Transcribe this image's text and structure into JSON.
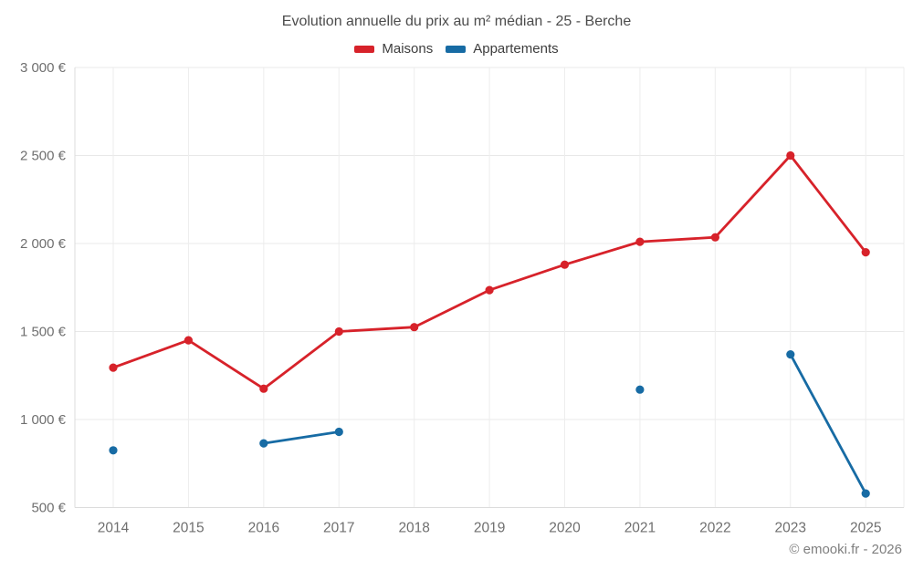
{
  "chart": {
    "title": "Evolution annuelle du prix au m² médian - 25 - Berche",
    "legend": [
      {
        "label": "Maisons",
        "color": "#d7222a"
      },
      {
        "label": "Appartements",
        "color": "#176ba4"
      }
    ]
  },
  "footer": {
    "copyright": "© emooki.fr - 2026"
  },
  "chart_data": {
    "type": "line",
    "title": "Evolution annuelle du prix au m² médian - 25 - Berche",
    "categories": [
      "2014",
      "2015",
      "2016",
      "2017",
      "2018",
      "2019",
      "2020",
      "2021",
      "2022",
      "2023",
      "2025"
    ],
    "series": [
      {
        "name": "Maisons",
        "color": "#d7222a",
        "values": [
          1295,
          1450,
          1175,
          1500,
          1525,
          1735,
          1880,
          2010,
          2035,
          2500,
          1950
        ]
      },
      {
        "name": "Appartements",
        "color": "#176ba4",
        "values": [
          825,
          null,
          865,
          930,
          null,
          null,
          null,
          1170,
          null,
          1370,
          580
        ]
      }
    ],
    "ylim": [
      500,
      3000
    ],
    "yticks": [
      {
        "value": 500,
        "label": "500 €"
      },
      {
        "value": 1000,
        "label": "1 000 €"
      },
      {
        "value": 1500,
        "label": "1 500 €"
      },
      {
        "value": 2000,
        "label": "2 000 €"
      },
      {
        "value": 2500,
        "label": "2 500 €"
      },
      {
        "value": 3000,
        "label": "3 000 €"
      }
    ],
    "unit": "€",
    "grid": true,
    "legend_position": "top",
    "notes": "no data for 2024; Appartements series has gaps (isolated points in 2014 and 2021)"
  }
}
